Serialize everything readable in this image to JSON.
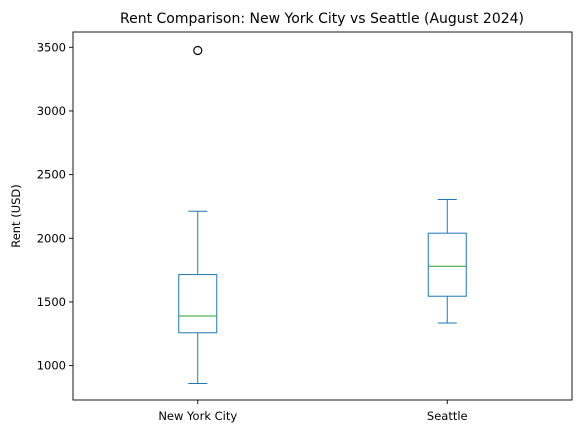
{
  "chart_data": {
    "type": "boxplot",
    "title": "Rent Comparison: New York City vs Seattle (August 2024)",
    "xlabel": "",
    "ylabel": "Rent (USD)",
    "ylim": [
      730,
      3620
    ],
    "yticks": [
      1000,
      1500,
      2000,
      2500,
      3000,
      3500
    ],
    "grid": false,
    "box_color": "#1f77b4",
    "median_color": "#2ca02c",
    "categories": [
      "New York City",
      "Seattle"
    ],
    "boxes": [
      {
        "category": "New York City",
        "whisker_low": 860,
        "q1": 1258,
        "median": 1390,
        "q3": 1715,
        "whisker_high": 2212,
        "outliers": [
          3475
        ]
      },
      {
        "category": "Seattle",
        "whisker_low": 1335,
        "q1": 1545,
        "median": 1780,
        "q3": 2040,
        "whisker_high": 2305,
        "outliers": []
      }
    ]
  }
}
